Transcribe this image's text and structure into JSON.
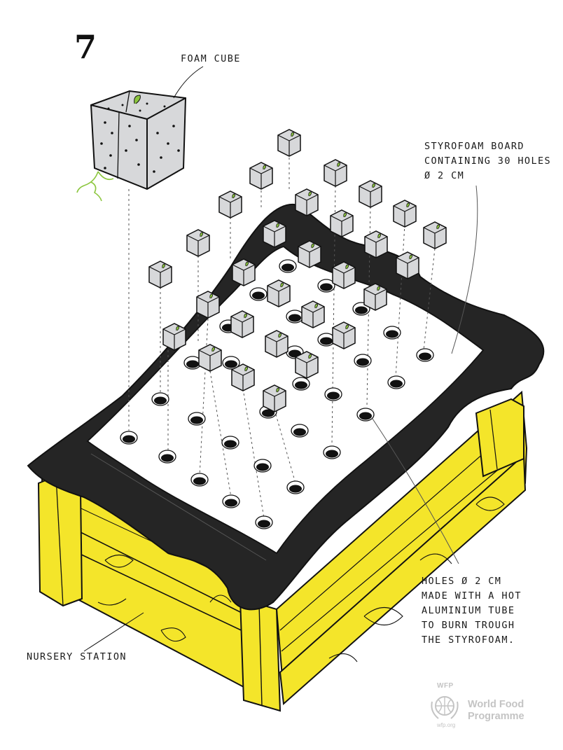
{
  "step_number": "7",
  "labels": {
    "foam_cube": "FOAM CUBE",
    "styrofoam_board": [
      "STYROFOAM BOARD",
      "CONTAINING 30 HOLES",
      "ø 2 CM"
    ],
    "holes": [
      "HOLES ø 2 CM",
      "MADE WITH A HOT",
      "ALUMINIUM TUBE",
      "TO BURN TROUGH",
      "THE STYROFOAM."
    ],
    "nursery_station": "NURSERY STATION"
  },
  "logo": {
    "acronym": "WFP",
    "line1": "World Food",
    "line2": "Programme",
    "site": "wfp.org"
  },
  "colors": {
    "wood": "#f4e52a",
    "liner": "#252525",
    "board": "#ffffff",
    "cube": "#d7d8da",
    "sprout": "#8cc63f",
    "logo": "#c4c4c4"
  }
}
